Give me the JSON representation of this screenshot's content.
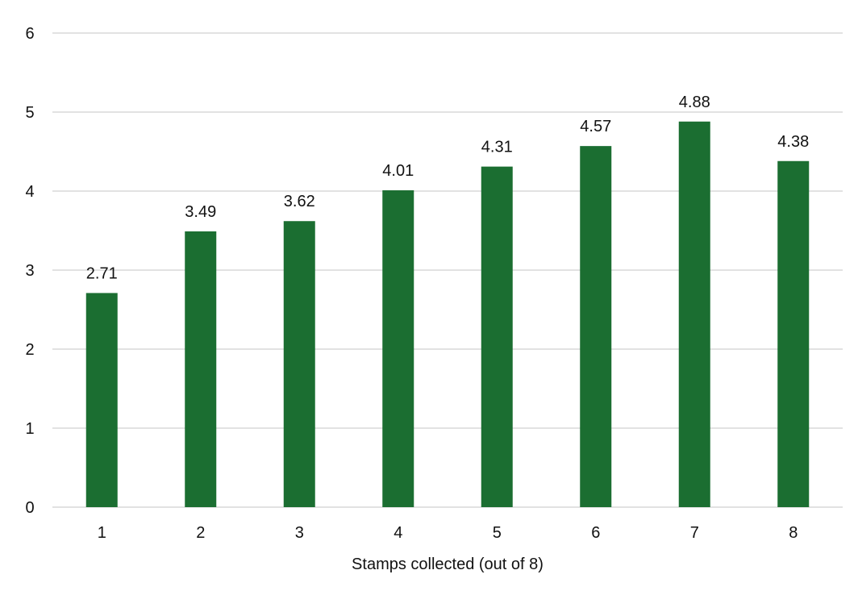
{
  "chart_data": {
    "type": "bar",
    "title": "",
    "xlabel": "Stamps collected (out of 8)",
    "ylabel": "",
    "categories": [
      "1",
      "2",
      "3",
      "4",
      "5",
      "6",
      "7",
      "8"
    ],
    "series": [
      {
        "values": [
          2.71,
          3.49,
          3.62,
          4.01,
          4.31,
          4.57,
          4.88,
          4.38
        ],
        "labels": [
          "2.71",
          "3.49",
          "3.62",
          "4.01",
          "4.31",
          "4.57",
          "4.88",
          "4.38"
        ],
        "color": "#1b6e31"
      }
    ],
    "ylim": [
      0,
      6
    ],
    "yticks": [
      "0",
      "1",
      "2",
      "3",
      "4",
      "5",
      "6"
    ],
    "grid": true,
    "grid_color": "#d9d9d9",
    "legend": "none"
  }
}
